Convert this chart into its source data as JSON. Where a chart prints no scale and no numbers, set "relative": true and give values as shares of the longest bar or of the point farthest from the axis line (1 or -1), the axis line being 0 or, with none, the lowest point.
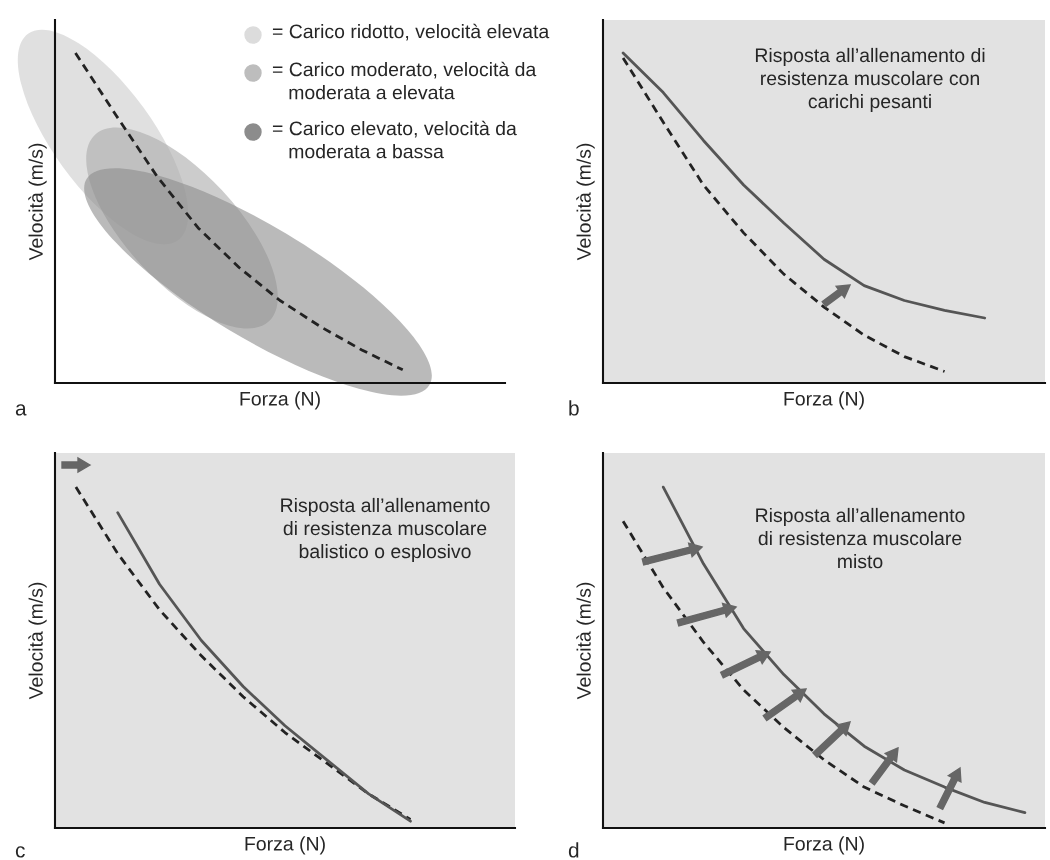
{
  "chart_data": [
    {
      "type": "line",
      "relative": true,
      "xlabel": "Forza (N)",
      "ylabel": "Velocità (m/s)",
      "tick_labels": false,
      "categories": [
        null,
        null,
        null,
        null,
        null,
        null,
        null,
        null,
        null,
        null,
        null
      ],
      "series": [
        {
          "color": "#222222",
          "line_style": "dashed",
          "values": [
            1,
            0.81,
            0.625,
            0.47,
            0.35,
            0.25,
            0.17,
            0.1,
            0.04,
            null,
            null
          ]
        }
      ],
      "annotations": [
        "a",
        "= Carico ridotto, velocità elevata",
        "= Carico moderato, velocità da\n   moderata a elevata",
        "= Carico elevato, velocità da\n   moderata a bassa"
      ]
    },
    {
      "type": "line",
      "relative": true,
      "xlabel": "Forza (N)",
      "ylabel": "Velocità (m/s)",
      "tick_labels": false,
      "categories": [
        null,
        null,
        null,
        null,
        null,
        null,
        null,
        null,
        null,
        null,
        null
      ],
      "series": [
        {
          "color": "#222222",
          "line_style": "dashed",
          "values": [
            0.985,
            0.79,
            0.6,
            0.455,
            0.33,
            0.23,
            0.145,
            0.08,
            0.035,
            null,
            null
          ]
        },
        {
          "color": "#555555",
          "line_style": "solid",
          "values": [
            1,
            0.88,
            0.735,
            0.6,
            0.485,
            0.375,
            0.295,
            0.25,
            0.22,
            0.197,
            null
          ]
        }
      ],
      "annotations": [
        "b",
        "Risposta all’allenamento di\nresistenza muscolare con\ncarichi pesanti"
      ]
    },
    {
      "type": "line",
      "relative": true,
      "xlabel": "Forza (N)",
      "ylabel": "Velocità (m/s)",
      "tick_labels": false,
      "categories": [
        null,
        null,
        null,
        null,
        null,
        null,
        null,
        null,
        null,
        null,
        null
      ],
      "series": [
        {
          "color": "#222222",
          "line_style": "dashed",
          "values": [
            1,
            0.805,
            0.64,
            0.505,
            0.385,
            0.28,
            0.19,
            0.1,
            0.025,
            null,
            null
          ]
        },
        {
          "color": "#555555",
          "line_style": "solid",
          "values": [
            null,
            0.925,
            0.715,
            0.55,
            0.415,
            0.3,
            0.2,
            0.1,
            0.02,
            null,
            null
          ]
        }
      ],
      "annotations": [
        "c",
        "Risposta all’allenamento\ndi resistenza muscolare\nbalistico o esplosivo"
      ]
    },
    {
      "type": "line",
      "relative": true,
      "xlabel": "Forza (N)",
      "ylabel": "Velocità (m/s)",
      "tick_labels": false,
      "categories": [
        null,
        null,
        null,
        null,
        null,
        null,
        null,
        null,
        null,
        null,
        null
      ],
      "series": [
        {
          "color": "#222222",
          "line_style": "dashed",
          "values": [
            0.9,
            0.705,
            0.545,
            0.405,
            0.295,
            0.2,
            0.12,
            0.065,
            0.015,
            null,
            null
          ]
        },
        {
          "color": "#555555",
          "line_style": "solid",
          "values": [
            null,
            1,
            0.775,
            0.585,
            0.45,
            0.335,
            0.24,
            0.17,
            0.12,
            0.075,
            0.045
          ]
        }
      ],
      "annotations": [
        "d",
        "Risposta all’allenamento\ndi resistenza muscolare\nmisto"
      ]
    }
  ]
}
